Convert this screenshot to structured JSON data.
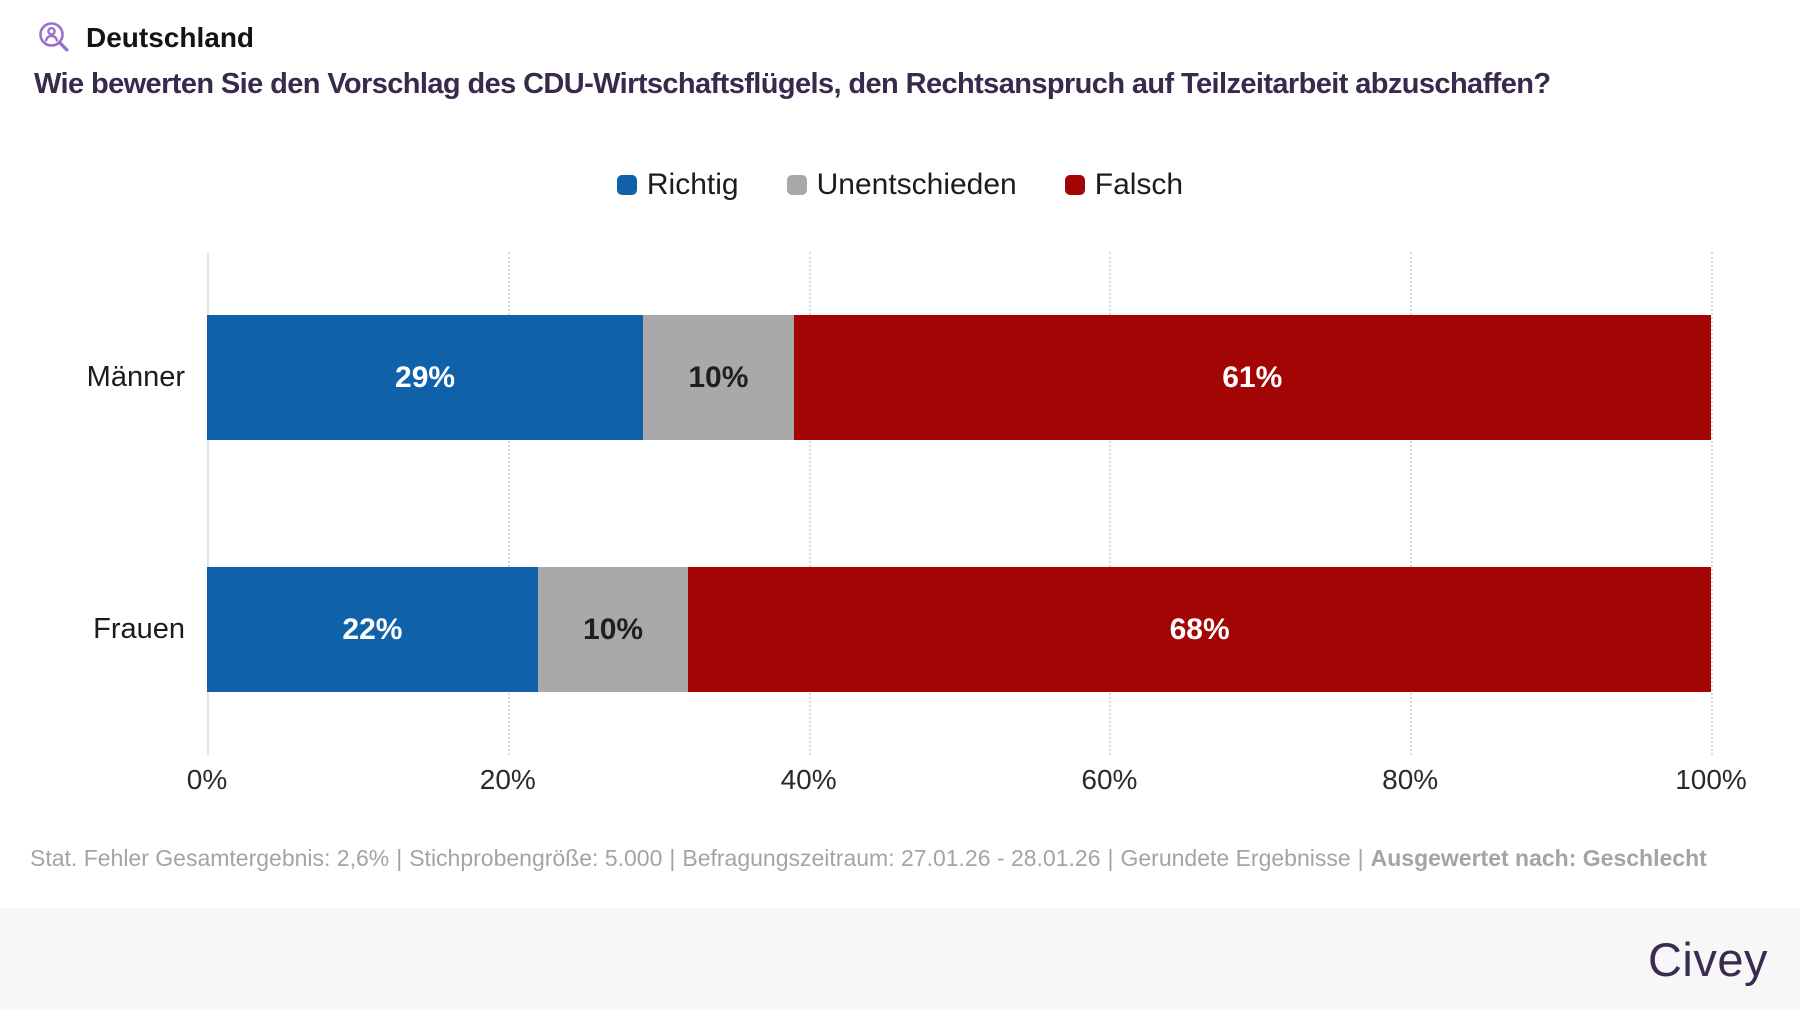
{
  "page": {
    "background": "#ffffff",
    "band_background": "#f7f7f8"
  },
  "header": {
    "region_label": "Deutschland",
    "icon": "person-magnifier-icon",
    "icon_color": "#9a6fce"
  },
  "question": {
    "text": "Wie bewerten Sie den Vorschlag des CDU-Wirtschaftsflügels, den Rechtsanspruch auf Teilzeitarbeit abzuschaffen?",
    "color": "#38294d"
  },
  "legend": {
    "items": [
      {
        "label": "Richtig",
        "color": "#0f62a9"
      },
      {
        "label": "Unentschieden",
        "color": "#a9a9a9"
      },
      {
        "label": "Falsch",
        "color": "#a30505"
      }
    ]
  },
  "chart_data": {
    "type": "bar",
    "orientation": "horizontal",
    "stacked": true,
    "categories": [
      "Männer",
      "Frauen"
    ],
    "series": [
      {
        "name": "Richtig",
        "color": "#0f62a9",
        "label_color": "#ffffff",
        "values": [
          29,
          22
        ]
      },
      {
        "name": "Unentschieden",
        "color": "#a9a9a9",
        "label_color": "#1f1f1f",
        "values": [
          10,
          10
        ]
      },
      {
        "name": "Falsch",
        "color": "#a30505",
        "label_color": "#ffffff",
        "values": [
          61,
          68
        ]
      }
    ],
    "value_suffix": "%",
    "xlim": [
      0,
      100
    ],
    "x_ticks": [
      "0%",
      "20%",
      "40%",
      "60%",
      "80%",
      "100%"
    ],
    "grid": "vertical-dotted",
    "legend_position": "top-center"
  },
  "footnote": {
    "separator": "|",
    "segments": [
      {
        "text": "Stat. Fehler Gesamtergebnis: 2,6%",
        "bold": false
      },
      {
        "text": "Stichprobengröße: 5.000",
        "bold": false
      },
      {
        "text": "Befragungszeitraum: 27.01.26 - 28.01.26",
        "bold": false
      },
      {
        "text": "Gerundete Ergebnisse",
        "bold": false
      },
      {
        "text": "Ausgewertet nach: Geschlecht",
        "bold": true
      }
    ]
  },
  "branding": {
    "logo_text": "Civey",
    "logo_color": "#3b2b52"
  }
}
